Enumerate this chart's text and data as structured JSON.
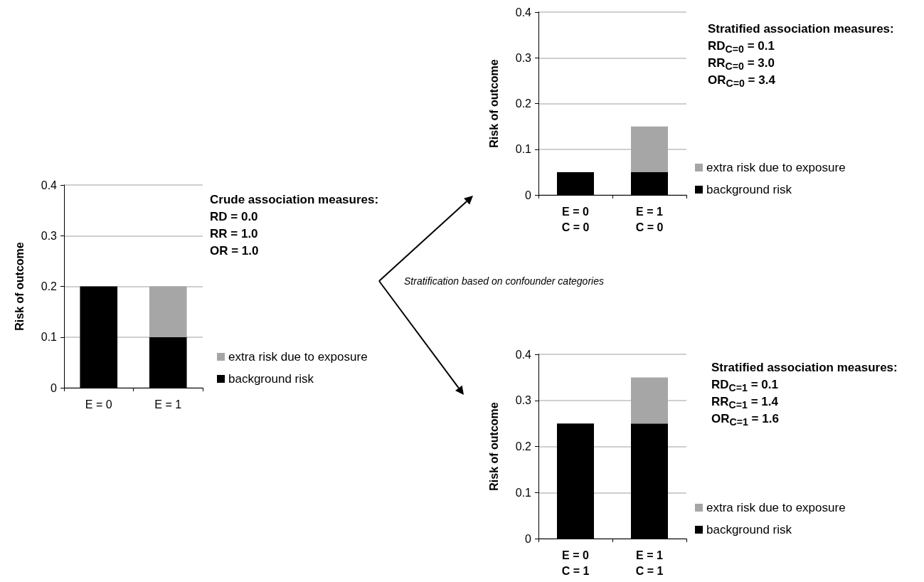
{
  "chart_data": [
    {
      "type": "bar",
      "categories": [
        "E = 0",
        "E = 1"
      ],
      "ylabel": "Risk of outcome",
      "ylim": [
        0,
        0.4
      ],
      "yticks": [
        0,
        0.1,
        0.2,
        0.3,
        0.4
      ],
      "grid": "y",
      "stacked": true,
      "legend": "right",
      "series": [
        {
          "name": "background risk",
          "color": "#000000",
          "values": [
            0.2,
            0.1
          ]
        },
        {
          "name": "extra risk due to exposure",
          "color": "#a6a6a6",
          "values": [
            null,
            0.1
          ]
        }
      ],
      "annotations": [
        "Crude association measures:",
        "RD = 0.0",
        "RR = 1.0",
        "OR = 1.0"
      ]
    },
    {
      "type": "bar",
      "categories": [
        "E = 0\nC = 0",
        "E = 1\nC = 0"
      ],
      "ylabel": "Risk of outcome",
      "ylim": [
        0,
        0.4
      ],
      "yticks": [
        0,
        0.1,
        0.2,
        0.3,
        0.4
      ],
      "grid": "y",
      "stacked": true,
      "legend": "right",
      "series": [
        {
          "name": "background risk",
          "color": "#000000",
          "values": [
            0.05,
            0.05
          ]
        },
        {
          "name": "extra risk due to exposure",
          "color": "#a6a6a6",
          "values": [
            null,
            0.1
          ]
        }
      ],
      "annotations": [
        "Stratified association measures:",
        "RD$_{C=0}$ = 0.1",
        "RR$_{C=0}$ = 3.0",
        "OR$_{C=0}$ = 3.4",
        "Stratification based on confounder categories"
      ]
    },
    {
      "type": "bar",
      "categories": [
        "E = 0\nC = 1",
        "E = 1\nC = 1"
      ],
      "ylabel": "Risk of outcome",
      "ylim": [
        0,
        0.4
      ],
      "yticks": [
        0,
        0.1,
        0.2,
        0.3,
        0.4
      ],
      "grid": "y",
      "stacked": true,
      "legend": "right",
      "series": [
        {
          "name": "background risk",
          "color": "#000000",
          "values": [
            0.25,
            0.25
          ]
        },
        {
          "name": "extra risk due to exposure",
          "color": "#a6a6a6",
          "values": [
            null,
            0.1
          ]
        }
      ],
      "annotations": [
        "Stratified association measures:",
        "RD$_{C=1}$ = 0.1",
        "RR$_{C=1}$ = 1.4",
        "OR$_{C=1}$ = 1.6"
      ]
    }
  ]
}
